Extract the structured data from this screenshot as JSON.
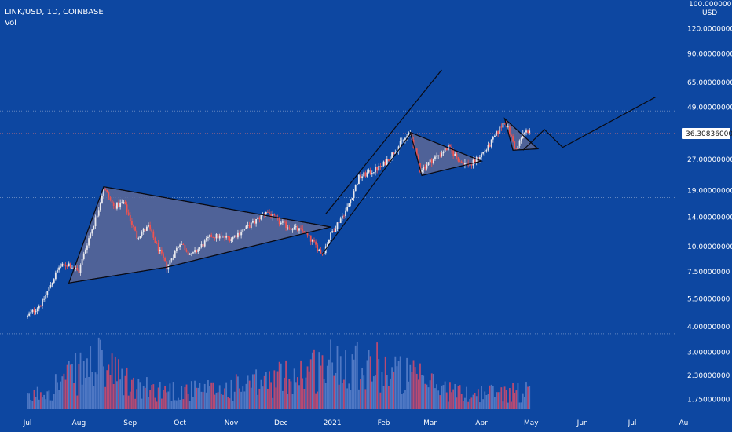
{
  "header": {
    "symbol_line": "LINK/USD, 1D, COINBASE",
    "volume_label": "Vol"
  },
  "chart_data": {
    "type": "candlestick",
    "title": "LINK/USD, 1D, COINBASE",
    "price_axis": {
      "currency": "USD",
      "scale": "log",
      "top_label": "100.00000000",
      "tick_labels": [
        "120.00000000",
        "90.00000000",
        "65.00000000",
        "49.00000000",
        "27.00000000",
        "19.00000000",
        "14.00000000",
        "10.00000000",
        "7.50000000",
        "5.50000000",
        "4.00000000",
        "3.00000000",
        "2.30000000",
        "1.75000000"
      ],
      "current_price": "36.30836000"
    },
    "time_axis": {
      "tick_labels": [
        "Jul",
        "Aug",
        "Sep",
        "Oct",
        "Nov",
        "Dec",
        "2021",
        "Feb",
        "Mar",
        "Apr",
        "May",
        "Jun",
        "Jul",
        "Au"
      ]
    },
    "price_path": [
      {
        "date": "2020-07-01",
        "close": 4.5
      },
      {
        "date": "2020-07-10",
        "close": 5.3
      },
      {
        "date": "2020-07-20",
        "close": 7.9
      },
      {
        "date": "2020-07-26",
        "close": 8.2
      },
      {
        "date": "2020-08-01",
        "close": 7.5
      },
      {
        "date": "2020-08-06",
        "close": 10.4
      },
      {
        "date": "2020-08-12",
        "close": 14.5
      },
      {
        "date": "2020-08-16",
        "close": 19.5
      },
      {
        "date": "2020-08-22",
        "close": 15.8
      },
      {
        "date": "2020-08-28",
        "close": 16.5
      },
      {
        "date": "2020-09-05",
        "close": 11.2
      },
      {
        "date": "2020-09-12",
        "close": 12.5
      },
      {
        "date": "2020-09-23",
        "close": 7.9
      },
      {
        "date": "2020-10-01",
        "close": 10.5
      },
      {
        "date": "2020-10-08",
        "close": 9.0
      },
      {
        "date": "2020-10-20",
        "close": 11.3
      },
      {
        "date": "2020-11-01",
        "close": 11.0
      },
      {
        "date": "2020-11-15",
        "close": 13.2
      },
      {
        "date": "2020-11-22",
        "close": 15.0
      },
      {
        "date": "2020-12-01",
        "close": 13.0
      },
      {
        "date": "2020-12-15",
        "close": 11.8
      },
      {
        "date": "2020-12-26",
        "close": 9.2
      },
      {
        "date": "2021-01-01",
        "close": 11.9
      },
      {
        "date": "2021-01-10",
        "close": 15.5
      },
      {
        "date": "2021-01-17",
        "close": 22.0
      },
      {
        "date": "2021-01-31",
        "close": 25.0
      },
      {
        "date": "2021-02-12",
        "close": 33.0
      },
      {
        "date": "2021-02-17",
        "close": 36.5
      },
      {
        "date": "2021-02-23",
        "close": 24.0
      },
      {
        "date": "2021-03-05",
        "close": 28.0
      },
      {
        "date": "2021-03-12",
        "close": 31.0
      },
      {
        "date": "2021-03-20",
        "close": 26.0
      },
      {
        "date": "2021-03-26",
        "close": 25.5
      },
      {
        "date": "2021-04-05",
        "close": 31.0
      },
      {
        "date": "2021-04-15",
        "close": 42.0
      },
      {
        "date": "2021-04-22",
        "close": 30.0
      },
      {
        "date": "2021-04-26",
        "close": 36.0
      },
      {
        "date": "2021-04-30",
        "close": 38.0
      }
    ],
    "volume_path": [
      {
        "date": "2020-07-01",
        "volume": 0.2
      },
      {
        "date": "2020-08-12",
        "volume": 0.9
      },
      {
        "date": "2020-09-05",
        "volume": 0.4
      },
      {
        "date": "2020-10-15",
        "volume": 0.35
      },
      {
        "date": "2020-11-20",
        "volume": 0.5
      },
      {
        "date": "2021-01-12",
        "volume": 1.0
      },
      {
        "date": "2021-02-20",
        "volume": 0.6
      },
      {
        "date": "2021-03-20",
        "volume": 0.3
      },
      {
        "date": "2021-04-30",
        "volume": 0.35
      }
    ],
    "horizontal_levels": [
      47.0,
      36.30836,
      17.5,
      3.7
    ],
    "patterns": {
      "triangle_1": [
        [
          "2020-07-26",
          6.6
        ],
        [
          "2020-08-16",
          19.8
        ],
        [
          "2020-12-31",
          12.5
        ],
        [
          "2020-09-23",
          7.9
        ]
      ],
      "triangle_2": [
        [
          "2021-02-17",
          36.8
        ],
        [
          "2021-04-01",
          26.5
        ],
        [
          "2021-02-24",
          22.5
        ]
      ],
      "triangle_3": [
        [
          "2021-04-15",
          43.0
        ],
        [
          "2021-05-05",
          30.5
        ],
        [
          "2021-04-20",
          30.0
        ]
      ],
      "channel_upper": [
        [
          "2020-12-28",
          14.5
        ],
        [
          "2021-03-08",
          75.0
        ]
      ],
      "channel_lower": [
        [
          "2020-12-26",
          9.2
        ],
        [
          "2021-02-17",
          36.0
        ]
      ],
      "projection": [
        [
          "2021-04-26",
          30.0
        ],
        [
          "2021-05-09",
          38.0
        ],
        [
          "2021-05-20",
          31.0
        ],
        [
          "2021-07-15",
          55.0
        ]
      ]
    }
  },
  "colors": {
    "background": "#0d47a1",
    "up_candle": "#e8e8ee",
    "down_candle": "#ef5350",
    "up_volume": "#4f78c4",
    "down_volume": "#b94a72",
    "pattern_fill": "#5c6796",
    "current_price_line": "#e57373",
    "level_line": "#9bb0d6"
  }
}
